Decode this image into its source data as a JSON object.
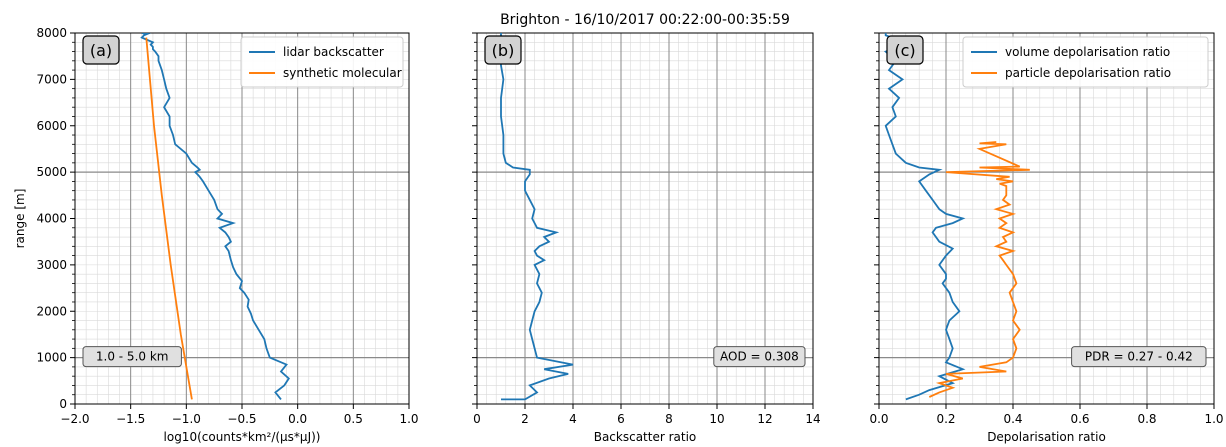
{
  "figure": {
    "title": "Brighton - 16/10/2017 00:22:00-00:35:59"
  },
  "chart_data": [
    {
      "type": "line",
      "panel_label": "(a)",
      "xlabel": "log10(counts*km²/(µs*µJ))",
      "ylabel": "range [m]",
      "xlim": [
        -2.0,
        1.0
      ],
      "ylim": [
        0,
        8000
      ],
      "xticks": [
        -2.0,
        -1.5,
        -1.0,
        -0.5,
        0.0,
        0.5,
        1.0
      ],
      "xtick_labels": [
        "−2.0",
        "−1.5",
        "−1.0",
        "−0.5",
        "0.0",
        "0.5",
        "1.0"
      ],
      "yticks": [
        0,
        1000,
        2000,
        3000,
        4000,
        5000,
        6000,
        7000,
        8000
      ],
      "ytick_labels": [
        "0",
        "1000",
        "2000",
        "3000",
        "4000",
        "5000",
        "6000",
        "7000",
        "8000"
      ],
      "grid": true,
      "legend": "top-right",
      "annotation": "1.0 - 5.0 km",
      "series": [
        {
          "name": "lidar backscatter",
          "color": "#1f77b4",
          "x": [
            -0.15,
            -0.2,
            -0.12,
            -0.08,
            -0.15,
            -0.1,
            -0.25,
            -0.28,
            -0.3,
            -0.35,
            -0.4,
            -0.42,
            -0.45,
            -0.44,
            -0.48,
            -0.52,
            -0.5,
            -0.55,
            -0.58,
            -0.6,
            -0.62,
            -0.65,
            -0.6,
            -0.62,
            -0.65,
            -0.7,
            -0.58,
            -0.72,
            -0.68,
            -0.72,
            -0.75,
            -0.8,
            -0.85,
            -0.88,
            -0.9,
            -0.92,
            -0.88,
            -0.9,
            -0.95,
            -1.0,
            -1.1,
            -1.12,
            -1.15,
            -1.15,
            -1.2,
            -1.15,
            -1.18,
            -1.2,
            -1.22,
            -1.25,
            -1.25,
            -1.28,
            -1.3,
            -1.3,
            -1.32,
            -1.3,
            -1.35,
            -1.4,
            -1.38,
            -1.35,
            -1.38,
            -1.4
          ],
          "y": [
            100,
            250,
            400,
            550,
            700,
            850,
            1000,
            1200,
            1400,
            1600,
            1800,
            1950,
            2100,
            2250,
            2400,
            2500,
            2650,
            2800,
            2950,
            3100,
            3300,
            3400,
            3500,
            3600,
            3700,
            3800,
            3900,
            4000,
            4100,
            4200,
            4400,
            4600,
            4800,
            4900,
            4950,
            5000,
            5050,
            5100,
            5200,
            5400,
            5600,
            5800,
            6000,
            6200,
            6400,
            6600,
            6800,
            7000,
            7200,
            7400,
            7500,
            7600,
            7650,
            7700,
            7750,
            7800,
            7850,
            7900,
            7950,
            7980,
            7990,
            8000
          ]
        },
        {
          "name": "synthetic molecular",
          "color": "#ff7f0e",
          "x": [
            -0.95,
            -1.05,
            -1.14,
            -1.22,
            -1.29,
            -1.36
          ],
          "y": [
            100,
            1500,
            3000,
            4500,
            6000,
            7900
          ]
        }
      ]
    },
    {
      "type": "line",
      "panel_label": "(b)",
      "xlabel": "Backscatter ratio",
      "ylabel": "",
      "xlim": [
        0,
        14
      ],
      "ylim": [
        0,
        8000
      ],
      "xticks": [
        0,
        2,
        4,
        6,
        8,
        10,
        12,
        14
      ],
      "xtick_labels": [
        "0",
        "2",
        "4",
        "6",
        "8",
        "10",
        "12",
        "14"
      ],
      "grid": true,
      "annotation": "AOD = 0.308",
      "series": [
        {
          "name": "",
          "color": "#1f77b4",
          "x": [
            1.0,
            2.0,
            2.5,
            2.2,
            3.0,
            3.8,
            2.8,
            4.0,
            2.5,
            2.4,
            2.3,
            2.2,
            2.3,
            2.4,
            2.6,
            2.7,
            2.5,
            2.6,
            2.4,
            2.8,
            2.5,
            2.4,
            2.6,
            3.0,
            2.8,
            3.3,
            2.5,
            2.4,
            2.3,
            2.4,
            2.2,
            2.0,
            2.0,
            2.2,
            2.2,
            1.5,
            1.2,
            1.1,
            1.1,
            1.0,
            1.0,
            1.1,
            1.0,
            1.0,
            1.1,
            1.0,
            1.0
          ],
          "y": [
            100,
            100,
            250,
            400,
            550,
            650,
            750,
            850,
            1000,
            1200,
            1400,
            1600,
            1800,
            2000,
            2200,
            2400,
            2600,
            2800,
            3000,
            3100,
            3200,
            3300,
            3400,
            3500,
            3600,
            3700,
            3800,
            3900,
            4000,
            4200,
            4400,
            4600,
            4800,
            4950,
            5050,
            5100,
            5200,
            5400,
            5800,
            6200,
            6600,
            7000,
            7300,
            7600,
            7800,
            7950,
            8000
          ]
        }
      ]
    },
    {
      "type": "line",
      "panel_label": "(c)",
      "xlabel": "Depolarisation ratio",
      "ylabel": "",
      "xlim": [
        0.0,
        1.0
      ],
      "ylim": [
        0,
        8000
      ],
      "xticks": [
        0.0,
        0.2,
        0.4,
        0.6,
        0.8,
        1.0
      ],
      "xtick_labels": [
        "0.0",
        "0.2",
        "0.4",
        "0.6",
        "0.8",
        "1.0"
      ],
      "grid": true,
      "legend": "top-right",
      "annotation": "PDR = 0.27 - 0.42",
      "series": [
        {
          "name": "volume depolarisation ratio",
          "color": "#1f77b4",
          "x": [
            0.08,
            0.12,
            0.15,
            0.22,
            0.18,
            0.25,
            0.2,
            0.21,
            0.22,
            0.21,
            0.2,
            0.21,
            0.24,
            0.22,
            0.21,
            0.19,
            0.2,
            0.2,
            0.18,
            0.2,
            0.22,
            0.18,
            0.16,
            0.17,
            0.22,
            0.25,
            0.2,
            0.18,
            0.16,
            0.14,
            0.12,
            0.15,
            0.18,
            0.12,
            0.08,
            0.05,
            0.04,
            0.03,
            0.02,
            0.05,
            0.04,
            0.06,
            0.03,
            0.07,
            0.03,
            0.05,
            0.02,
            0.06,
            0.03,
            0.04,
            0.02,
            0.02
          ],
          "y": [
            100,
            200,
            300,
            450,
            600,
            750,
            900,
            1000,
            1200,
            1400,
            1600,
            1800,
            2000,
            2200,
            2400,
            2600,
            2700,
            2800,
            3000,
            3200,
            3350,
            3500,
            3700,
            3800,
            3900,
            4000,
            4100,
            4200,
            4400,
            4600,
            4800,
            4950,
            5050,
            5100,
            5200,
            5400,
            5600,
            5800,
            6000,
            6200,
            6400,
            6600,
            6800,
            7000,
            7200,
            7400,
            7600,
            7700,
            7800,
            7900,
            7950,
            8000
          ]
        },
        {
          "name": "particle depolarisation ratio",
          "color": "#ff7f0e",
          "x": [
            0.15,
            0.18,
            0.22,
            0.18,
            0.25,
            0.2,
            0.38,
            0.3,
            0.38,
            0.4,
            0.41,
            0.4,
            0.42,
            0.4,
            0.41,
            0.4,
            0.39,
            0.41,
            0.4,
            0.38,
            0.37,
            0.36,
            0.4,
            0.35,
            0.38,
            0.37,
            0.4,
            0.36,
            0.38,
            0.36,
            0.4,
            0.35,
            0.39,
            0.37,
            0.38,
            0.38,
            0.38,
            0.36,
            0.4,
            0.35,
            0.39,
            0.2,
            0.45,
            0.3,
            0.42,
            0.3,
            0.38,
            0.3,
            0.35
          ],
          "y": [
            150,
            250,
            350,
            450,
            550,
            650,
            700,
            800,
            900,
            1000,
            1200,
            1400,
            1600,
            1800,
            2000,
            2200,
            2400,
            2600,
            2800,
            3000,
            3100,
            3200,
            3300,
            3400,
            3500,
            3600,
            3700,
            3800,
            3900,
            4000,
            4100,
            4200,
            4300,
            4400,
            4500,
            4600,
            4700,
            4750,
            4800,
            4850,
            4900,
            5000,
            5050,
            5100,
            5120,
            5500,
            5600,
            5620,
            5650
          ]
        }
      ]
    }
  ]
}
